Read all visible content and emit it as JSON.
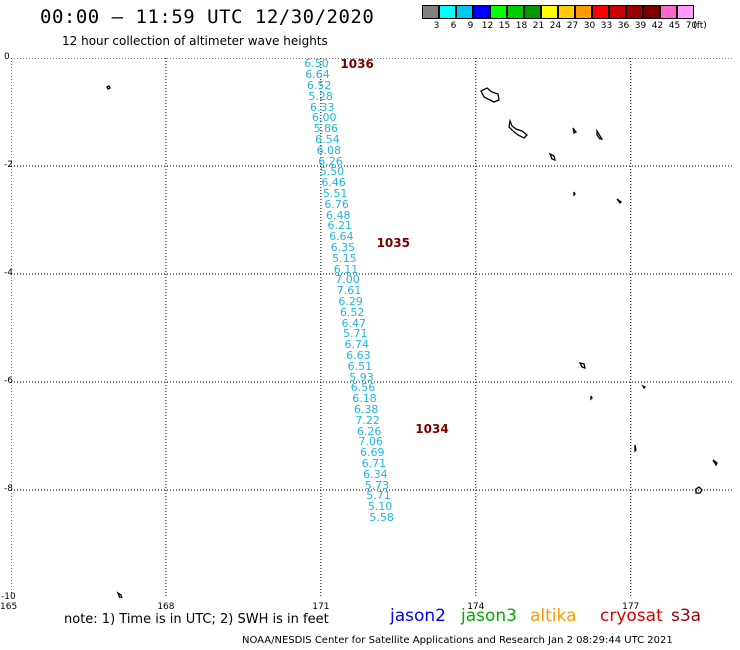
{
  "header": {
    "title": "00:00 – 11:59 UTC 12/30/2020",
    "subtitle": "12 hour collection of altimeter wave heights"
  },
  "scale": {
    "colors": [
      "#808080",
      "#00ffff",
      "#00c8f0",
      "#0000ff",
      "#00ff00",
      "#00cc00",
      "#009900",
      "#ffff00",
      "#ffcc00",
      "#ff9900",
      "#ff0000",
      "#cc0000",
      "#990000",
      "#800000",
      "#ff66cc",
      "#ff99ff"
    ],
    "labels": [
      "3",
      "6",
      "9",
      "12",
      "15",
      "18",
      "21",
      "24",
      "27",
      "30",
      "33",
      "36",
      "39",
      "42",
      "45",
      "70"
    ],
    "unit": "(ft)"
  },
  "map": {
    "lon_min": 165,
    "lon_max": 179,
    "lat_top": 0,
    "lat_bottom": -10,
    "grid_lons": [
      168,
      171,
      174,
      177
    ],
    "grid_lats": [
      -2,
      -4,
      -6,
      -8
    ],
    "y_labels": [
      "0",
      "-2",
      "-4",
      "-6",
      "-8",
      "-10"
    ],
    "x_labels": [
      "165",
      "168",
      "171",
      "174",
      "177"
    ]
  },
  "track": {
    "color": "#1fb6e0",
    "points": [
      {
        "lon": 170.95,
        "lat": -0.1,
        "v": "6.50"
      },
      {
        "lon": 170.97,
        "lat": -0.3,
        "v": "6.64"
      },
      {
        "lon": 171.0,
        "lat": -0.5,
        "v": "6.52"
      },
      {
        "lon": 171.03,
        "lat": -0.7,
        "v": "5.28"
      },
      {
        "lon": 171.06,
        "lat": -0.9,
        "v": "6.33"
      },
      {
        "lon": 171.1,
        "lat": -1.1,
        "v": "6.00"
      },
      {
        "lon": 171.13,
        "lat": -1.3,
        "v": "5.86"
      },
      {
        "lon": 171.16,
        "lat": -1.5,
        "v": "6.54"
      },
      {
        "lon": 171.19,
        "lat": -1.7,
        "v": "6.08"
      },
      {
        "lon": 171.22,
        "lat": -1.9,
        "v": "6.26"
      },
      {
        "lon": 171.25,
        "lat": -2.1,
        "v": "5.50"
      },
      {
        "lon": 171.28,
        "lat": -2.3,
        "v": "6.46"
      },
      {
        "lon": 171.31,
        "lat": -2.5,
        "v": "5.51"
      },
      {
        "lon": 171.34,
        "lat": -2.7,
        "v": "6.76"
      },
      {
        "lon": 171.37,
        "lat": -2.9,
        "v": "6.48"
      },
      {
        "lon": 171.4,
        "lat": -3.1,
        "v": "6.21"
      },
      {
        "lon": 171.43,
        "lat": -3.3,
        "v": "6.64"
      },
      {
        "lon": 171.46,
        "lat": -3.5,
        "v": "6.35"
      },
      {
        "lon": 171.49,
        "lat": -3.7,
        "v": "5.15"
      },
      {
        "lon": 171.52,
        "lat": -3.9,
        "v": "6.11"
      },
      {
        "lon": 171.55,
        "lat": -4.1,
        "v": "7.00"
      },
      {
        "lon": 171.58,
        "lat": -4.3,
        "v": "7.61"
      },
      {
        "lon": 171.61,
        "lat": -4.5,
        "v": "6.29"
      },
      {
        "lon": 171.64,
        "lat": -4.7,
        "v": "6.52"
      },
      {
        "lon": 171.67,
        "lat": -4.9,
        "v": "6.47"
      },
      {
        "lon": 171.7,
        "lat": -5.1,
        "v": "5.71"
      },
      {
        "lon": 171.73,
        "lat": -5.3,
        "v": "6.74"
      },
      {
        "lon": 171.76,
        "lat": -5.5,
        "v": "6.63"
      },
      {
        "lon": 171.79,
        "lat": -5.7,
        "v": "6.51"
      },
      {
        "lon": 171.82,
        "lat": -5.9,
        "v": "5.93"
      },
      {
        "lon": 171.85,
        "lat": -6.1,
        "v": "6.56"
      },
      {
        "lon": 171.88,
        "lat": -6.3,
        "v": "6.18"
      },
      {
        "lon": 171.91,
        "lat": -6.5,
        "v": "6.38"
      },
      {
        "lon": 171.94,
        "lat": -6.7,
        "v": "7.22"
      },
      {
        "lon": 171.97,
        "lat": -6.9,
        "v": "6.26"
      },
      {
        "lon": 172.0,
        "lat": -7.1,
        "v": "7.06"
      },
      {
        "lon": 172.03,
        "lat": -7.3,
        "v": "6.69"
      },
      {
        "lon": 172.06,
        "lat": -7.5,
        "v": "6.71"
      },
      {
        "lon": 172.09,
        "lat": -7.7,
        "v": "6.34"
      },
      {
        "lon": 172.12,
        "lat": -7.9,
        "v": "5.73"
      },
      {
        "lon": 172.15,
        "lat": -8.1,
        "v": "5.71"
      },
      {
        "lon": 172.18,
        "lat": -8.3,
        "v": "5.10"
      },
      {
        "lon": 172.21,
        "lat": -8.5,
        "v": "5.58"
      }
    ]
  },
  "time_labels": [
    {
      "text": "1036",
      "lon": 171.65,
      "lat": -0.1
    },
    {
      "text": "1035",
      "lon": 172.35,
      "lat": -3.4
    },
    {
      "text": "1034",
      "lon": 173.1,
      "lat": -6.85
    }
  ],
  "footer": {
    "note": "note: 1) Time is in UTC; 2) SWH is in feet",
    "satellites": [
      {
        "name": "jason2",
        "color": "#0000ff"
      },
      {
        "name": "jason3",
        "color": "#00aa00"
      },
      {
        "name": "altika",
        "color": "#ff9900"
      },
      {
        "name": "cryosat",
        "color": "#dd0000"
      },
      {
        "name": "s3a",
        "color": "#990000"
      }
    ],
    "credit": "NOAA/NESDIS Center for Satellite Applications and Research     Jan  2 08:29:44 UTC 2021"
  }
}
